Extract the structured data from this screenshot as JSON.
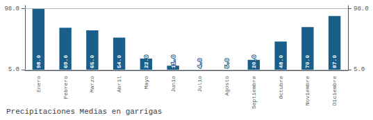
{
  "chart_data": {
    "type": "bar",
    "title": "Precipitaciones Medias en garrigas",
    "categories": [
      "Enero",
      "Febrero",
      "Marzo",
      "Abril",
      "Mayo",
      "Junio",
      "Julio",
      "Agosto",
      "Septiembre",
      "Octubre",
      "Noviembre",
      "Diciembre"
    ],
    "values": [
      98.0,
      69.0,
      65.0,
      54.0,
      22.0,
      11.0,
      4.0,
      5.0,
      20.0,
      48.0,
      70.0,
      87.0
    ],
    "value_labels": [
      "98.0",
      "69.0",
      "65.0",
      "54.0",
      "22.0",
      "11.0",
      "4.0",
      "5.0",
      "20.0",
      "48.0",
      "70.0",
      "87.0"
    ],
    "color": "#1a5f8a",
    "ylim": [
      4,
      103
    ],
    "yticks": [
      {
        "value": 5.0,
        "label": "5.0"
      },
      {
        "value": 98.0,
        "label": "98.0"
      }
    ],
    "grid": true,
    "data_labels": true
  }
}
